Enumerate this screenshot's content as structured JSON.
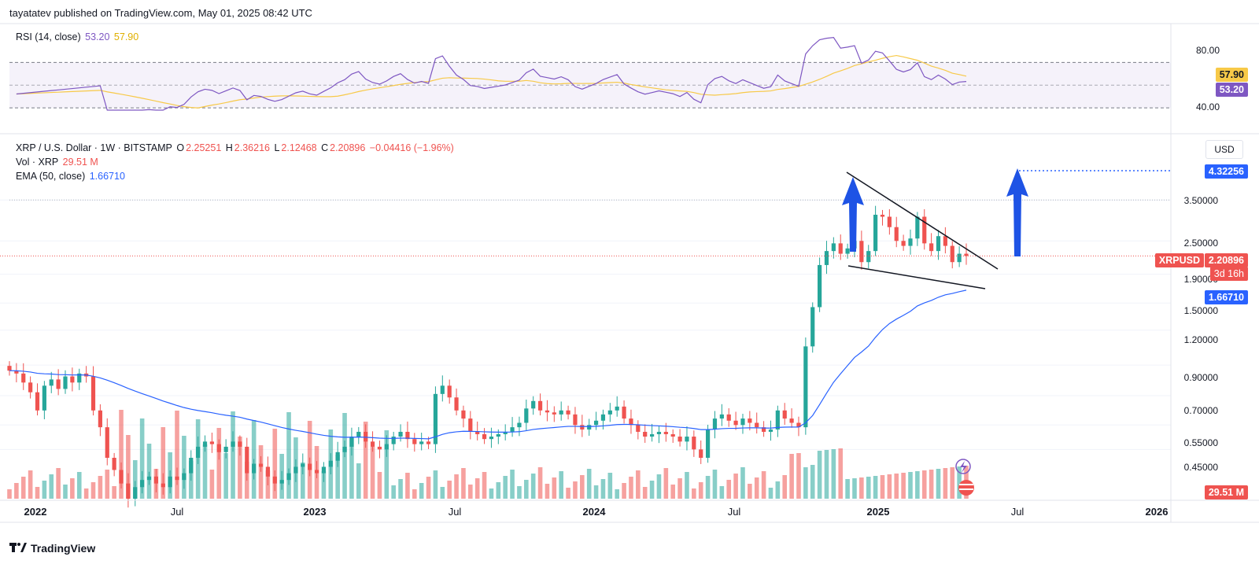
{
  "header": "tayatatev published on TradingView.com, May 01, 2025 08:42 UTC",
  "rsi": {
    "label": "RSI (14, close)",
    "value": "53.20",
    "ma": "57.90",
    "levels": [
      "80.00",
      "40.00"
    ],
    "color_line": "#7e57c2",
    "color_ma": "#f7c948"
  },
  "price": {
    "symbol": "XRP / U.S. Dollar · 1W · BITSTAMP",
    "o_label": "O",
    "o": "2.25251",
    "h_label": "H",
    "h": "2.36216",
    "l_label": "L",
    "l": "2.12468",
    "c_label": "C",
    "c": "2.20896",
    "change": "−0.04416 (−1.96%)",
    "vol_label": "Vol · XRP",
    "vol": "29.51 M",
    "ema_label": "EMA (50, close)",
    "ema": "1.66710",
    "currency": "USD",
    "ticker": "XRPUSD",
    "last_price": "2.20896",
    "countdown": "3d 16h",
    "ema_tag": "1.66710",
    "target_tag": "4.32256",
    "vol_tag": "29.51 M",
    "axis_labels": [
      "3.50000",
      "2.50000",
      "1.90000",
      "1.50000",
      "1.20000",
      "0.90000",
      "0.70000",
      "0.55000",
      "0.45000"
    ],
    "up_color": "#26a69a",
    "down_color": "#ef5350",
    "ema_color": "#2962ff"
  },
  "x_axis": [
    {
      "label": "2022",
      "year": true
    },
    {
      "label": "Jul",
      "year": false
    },
    {
      "label": "2023",
      "year": true
    },
    {
      "label": "Jul",
      "year": false
    },
    {
      "label": "2024",
      "year": true
    },
    {
      "label": "Jul",
      "year": false
    },
    {
      "label": "2025",
      "year": true
    },
    {
      "label": "Jul",
      "year": false
    },
    {
      "label": "2026",
      "year": true
    }
  ],
  "footer": "TradingView",
  "chart_data": {
    "type": "candlestick",
    "symbol": "XRP / U.S. Dollar",
    "interval": "1W",
    "scale": "log",
    "x_range": [
      "2022-01",
      "2026-01"
    ],
    "weekly_close": [
      0.86,
      0.84,
      0.78,
      0.72,
      0.62,
      0.76,
      0.8,
      0.74,
      0.82,
      0.78,
      0.84,
      0.82,
      0.62,
      0.54,
      0.42,
      0.38,
      0.34,
      0.3,
      0.33,
      0.35,
      0.36,
      0.34,
      0.33,
      0.36,
      0.35,
      0.37,
      0.42,
      0.46,
      0.48,
      0.47,
      0.44,
      0.46,
      0.48,
      0.46,
      0.37,
      0.4,
      0.39,
      0.36,
      0.34,
      0.35,
      0.37,
      0.39,
      0.4,
      0.38,
      0.37,
      0.39,
      0.41,
      0.44,
      0.46,
      0.5,
      0.52,
      0.48,
      0.46,
      0.45,
      0.47,
      0.5,
      0.52,
      0.49,
      0.47,
      0.48,
      0.47,
      0.71,
      0.76,
      0.69,
      0.62,
      0.58,
      0.52,
      0.51,
      0.49,
      0.5,
      0.51,
      0.52,
      0.54,
      0.56,
      0.63,
      0.67,
      0.62,
      0.61,
      0.6,
      0.62,
      0.6,
      0.55,
      0.53,
      0.55,
      0.57,
      0.6,
      0.62,
      0.64,
      0.58,
      0.55,
      0.52,
      0.5,
      0.51,
      0.52,
      0.51,
      0.5,
      0.48,
      0.5,
      0.45,
      0.42,
      0.53,
      0.58,
      0.6,
      0.57,
      0.55,
      0.58,
      0.56,
      0.54,
      0.52,
      0.53,
      0.62,
      0.58,
      0.56,
      0.54,
      1.05,
      1.45,
      2.05,
      2.3,
      2.45,
      2.25,
      2.35,
      2.5,
      2.1,
      2.3,
      3.1,
      3.05,
      2.8,
      2.5,
      2.4,
      2.55,
      3.05,
      2.45,
      2.3,
      2.6,
      2.4,
      2.1,
      2.25,
      2.20896
    ],
    "ema50": {
      "name": "EMA (50, close)",
      "last": 1.6671
    },
    "rsi": {
      "name": "RSI (14, close)",
      "last": 53.2,
      "ma_last": 57.9,
      "levels": [
        70,
        50,
        30
      ]
    },
    "annotations": {
      "triangle_upper": [
        [
          "2024-12",
          3.9
        ],
        [
          "2025-05",
          2.0
        ]
      ],
      "triangle_lower": [
        [
          "2024-12",
          2.05
        ],
        [
          "2025-05",
          1.85
        ]
      ],
      "target": 4.32256,
      "arrows": [
        "up",
        "up"
      ]
    }
  }
}
